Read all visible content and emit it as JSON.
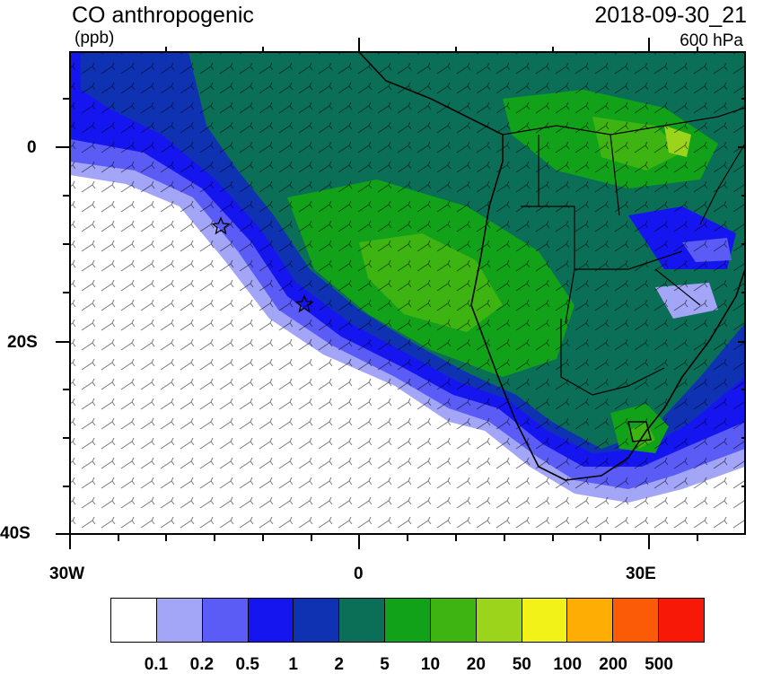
{
  "header": {
    "title": "CO anthropogenic",
    "units": "(ppb)",
    "datetime": "2018-09-30_21",
    "level": "600 hPa"
  },
  "axes": {
    "lat_labels": [
      "0",
      "20S",
      "40S"
    ],
    "lon_labels": [
      "30W",
      "0",
      "30E"
    ]
  },
  "colorbar": {
    "colors": [
      "#ffffff",
      "#a3a5f7",
      "#5a5cf5",
      "#1515f0",
      "#0f32b3",
      "#0b6e56",
      "#12a21a",
      "#3eb412",
      "#9cd41c",
      "#f2f218",
      "#fdad04",
      "#fb5a06",
      "#f81808"
    ],
    "labels": [
      "0.1",
      "0.2",
      "0.5",
      "1",
      "2",
      "5",
      "10",
      "20",
      "50",
      "100",
      "200",
      "500"
    ]
  },
  "markers": [
    {
      "name": "station-marker-west",
      "symbol": "star"
    },
    {
      "name": "station-marker-center",
      "symbol": "star"
    }
  ]
}
